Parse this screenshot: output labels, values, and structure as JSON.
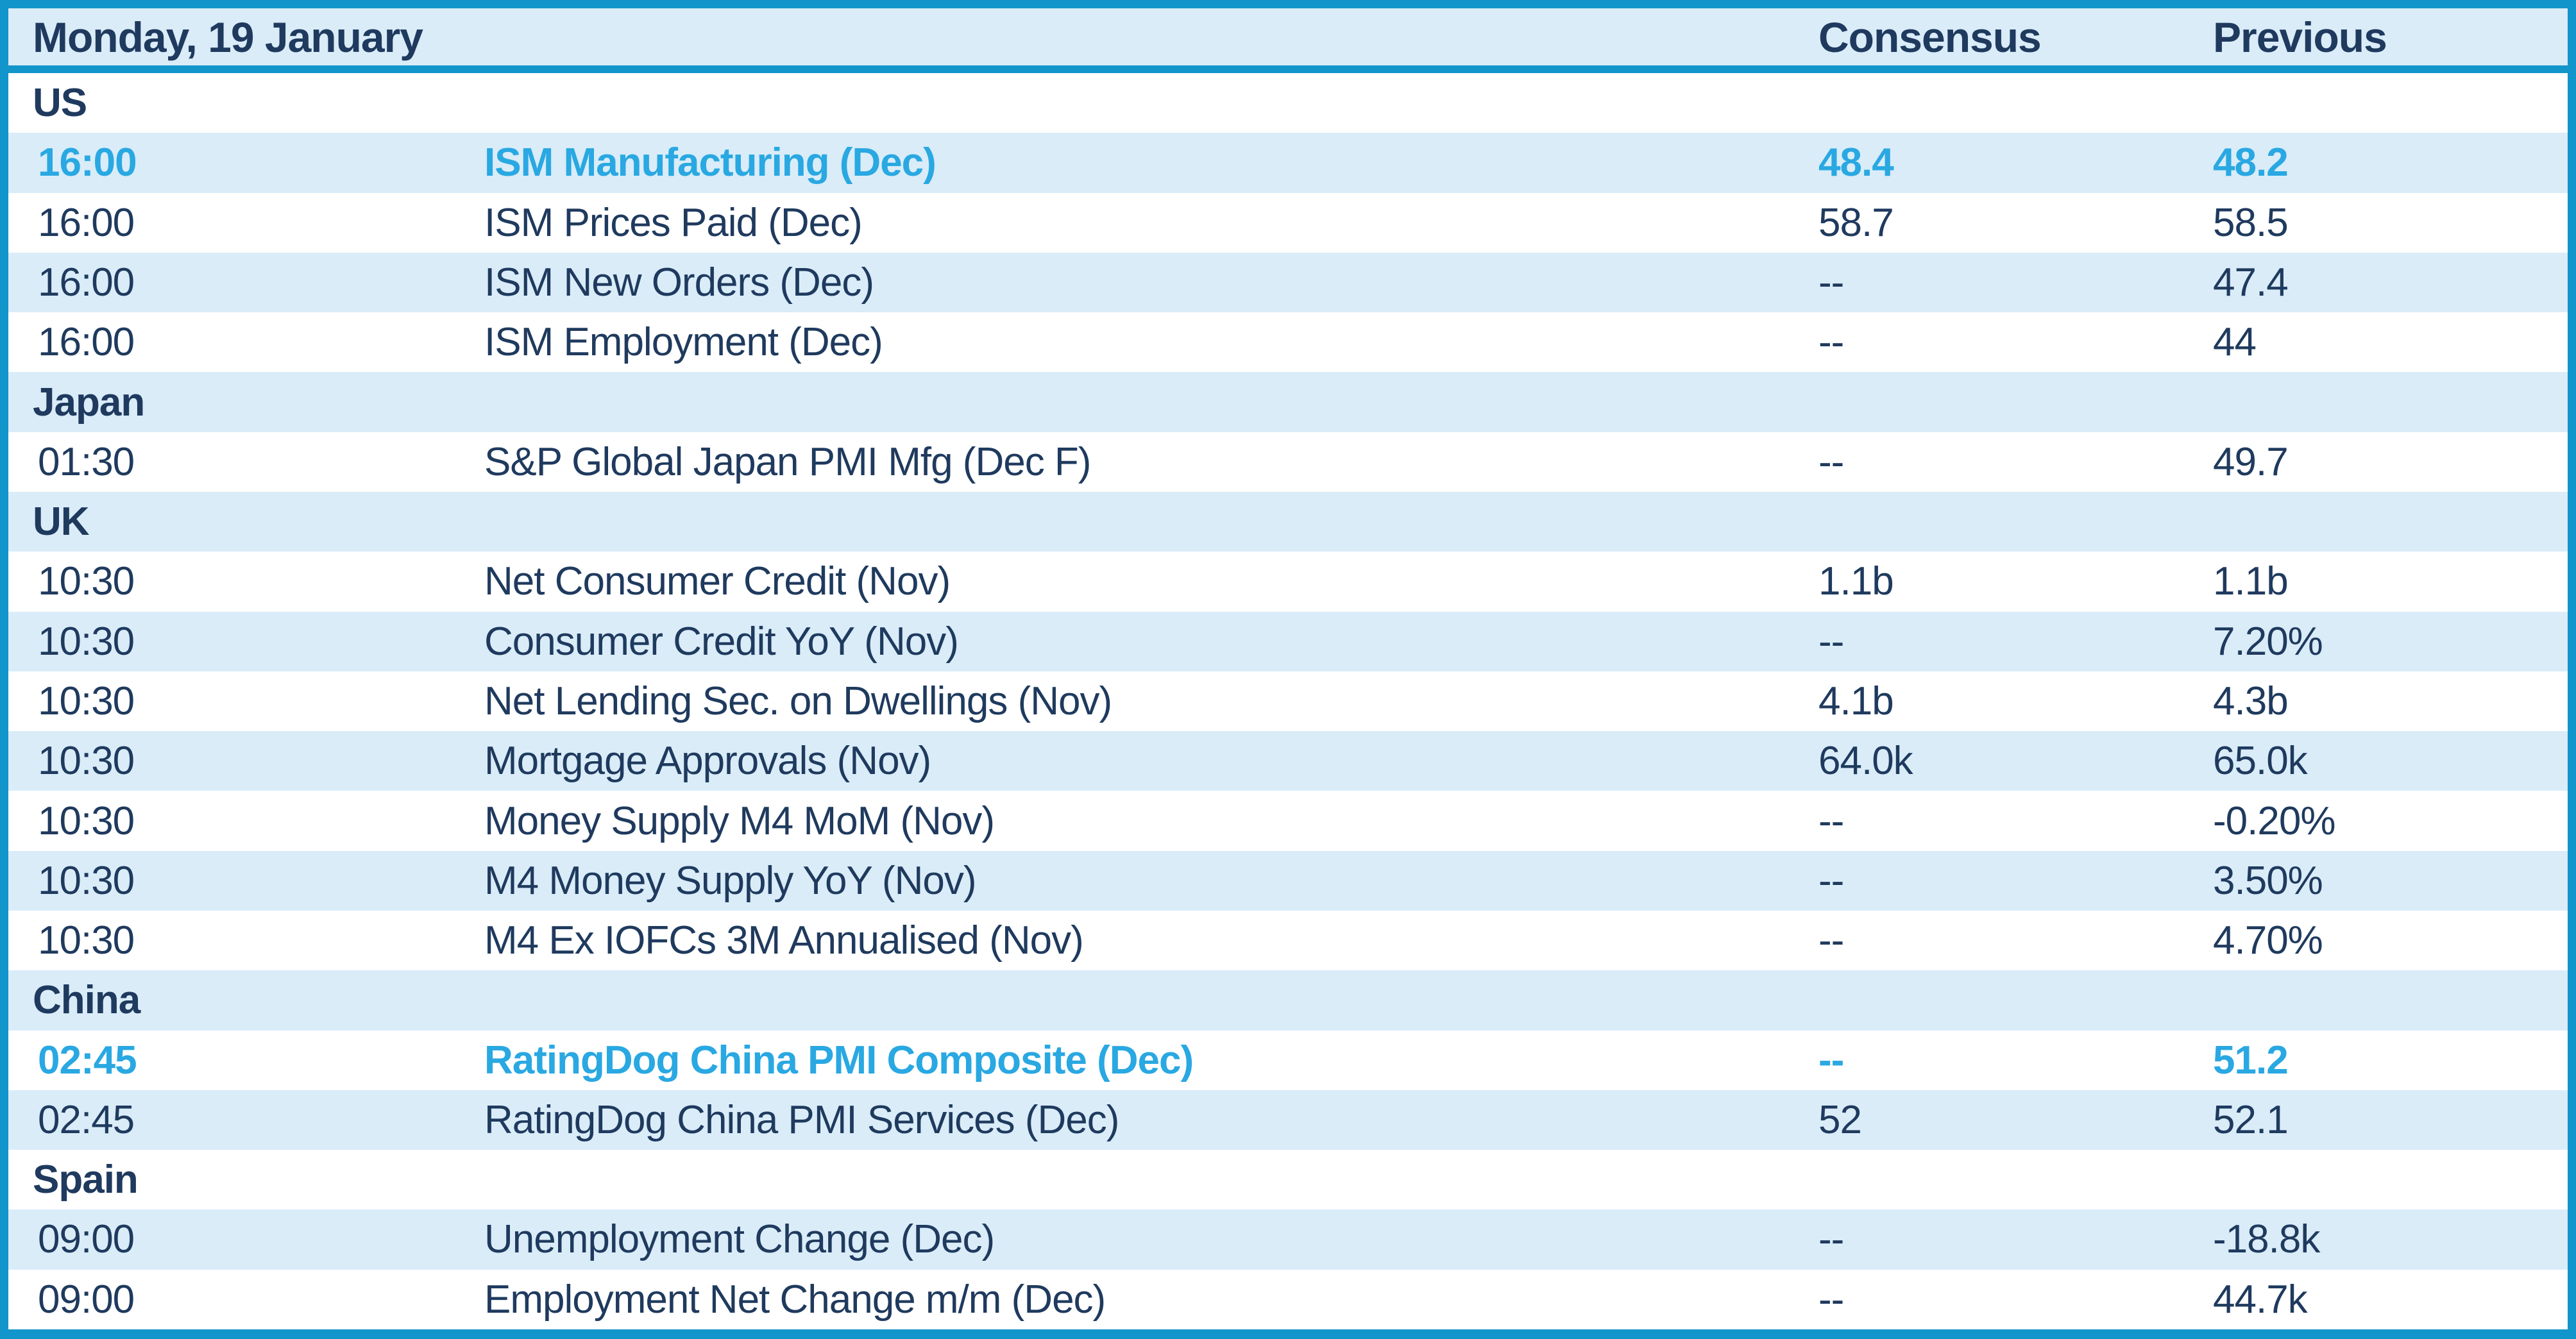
{
  "header": {
    "date_label": "Monday, 19 January",
    "consensus_label": "Consensus",
    "previous_label": "Previous"
  },
  "colors": {
    "accent": "#1295cb",
    "altbg": "#d9ecf8",
    "navy": "#1f3a5e",
    "cyan": "#29a8e2",
    "row_bg": "#ffffff"
  },
  "rows": [
    {
      "type": "section",
      "label": "US"
    },
    {
      "type": "event",
      "time": "16:00",
      "event": "ISM Manufacturing (Dec)",
      "consensus": "48.4",
      "previous": "48.2",
      "highlighted": true
    },
    {
      "type": "event",
      "time": "16:00",
      "event": "ISM Prices Paid (Dec)",
      "consensus": "58.7",
      "previous": "58.5",
      "highlighted": false
    },
    {
      "type": "event",
      "time": "16:00",
      "event": "ISM New Orders (Dec)",
      "consensus": "--",
      "previous": "47.4",
      "highlighted": false
    },
    {
      "type": "event",
      "time": "16:00",
      "event": "ISM Employment (Dec)",
      "consensus": "--",
      "previous": "44",
      "highlighted": false
    },
    {
      "type": "section",
      "label": "Japan"
    },
    {
      "type": "event",
      "time": "01:30",
      "event": "S&P Global Japan PMI Mfg (Dec F)",
      "consensus": "--",
      "previous": "49.7",
      "highlighted": false
    },
    {
      "type": "section",
      "label": "UK"
    },
    {
      "type": "event",
      "time": "10:30",
      "event": "Net Consumer Credit (Nov)",
      "consensus": "1.1b",
      "previous": "1.1b",
      "highlighted": false
    },
    {
      "type": "event",
      "time": "10:30",
      "event": "Consumer Credit YoY (Nov)",
      "consensus": "--",
      "previous": "7.20%",
      "highlighted": false
    },
    {
      "type": "event",
      "time": "10:30",
      "event": "Net Lending Sec. on Dwellings (Nov)",
      "consensus": "4.1b",
      "previous": "4.3b",
      "highlighted": false
    },
    {
      "type": "event",
      "time": "10:30",
      "event": "Mortgage Approvals (Nov)",
      "consensus": "64.0k",
      "previous": "65.0k",
      "highlighted": false
    },
    {
      "type": "event",
      "time": "10:30",
      "event": "Money Supply M4 MoM (Nov)",
      "consensus": "--",
      "previous": "-0.20%",
      "highlighted": false
    },
    {
      "type": "event",
      "time": "10:30",
      "event": "M4 Money Supply YoY (Nov)",
      "consensus": "--",
      "previous": "3.50%",
      "highlighted": false
    },
    {
      "type": "event",
      "time": "10:30",
      "event": "M4 Ex IOFCs 3M Annualised (Nov)",
      "consensus": "--",
      "previous": "4.70%",
      "highlighted": false
    },
    {
      "type": "section",
      "label": "China"
    },
    {
      "type": "event",
      "time": "02:45",
      "event": "RatingDog China PMI Composite (Dec)",
      "consensus": "--",
      "previous": "51.2",
      "highlighted": true
    },
    {
      "type": "event",
      "time": "02:45",
      "event": "RatingDog China PMI Services (Dec)",
      "consensus": "52",
      "previous": "52.1",
      "highlighted": false
    },
    {
      "type": "section",
      "label": "Spain"
    },
    {
      "type": "event",
      "time": "09:00",
      "event": "Unemployment Change (Dec)",
      "consensus": "--",
      "previous": "-18.8k",
      "highlighted": false
    },
    {
      "type": "event",
      "time": "09:00",
      "event": "Employment Net Change m/m (Dec)",
      "consensus": "--",
      "previous": "44.7k",
      "highlighted": false
    }
  ]
}
